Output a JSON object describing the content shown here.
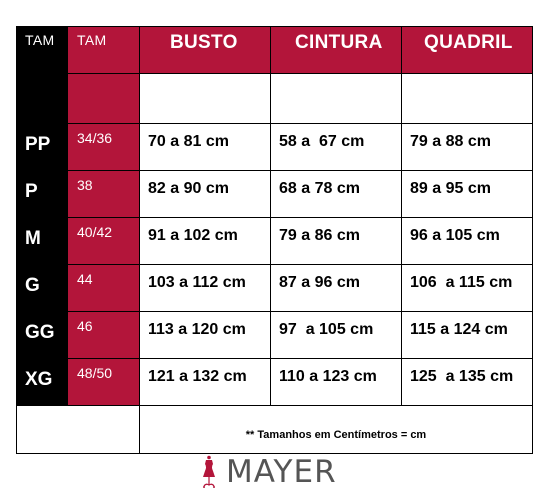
{
  "table": {
    "headers": {
      "tam": "TAM",
      "tam_num": "TAM",
      "busto": "BUSTO",
      "cintura": "CINTURA",
      "quadril": "QUADRIL"
    },
    "rows": [
      {
        "size": "PP",
        "num": "34/36",
        "busto": "70 a 81 cm",
        "cintura": "58 a  67 cm",
        "quadril": "79 a 88 cm"
      },
      {
        "size": "P",
        "num": "38",
        "busto": "82 a 90 cm",
        "cintura": "68 a 78 cm",
        "quadril": "89 a 95 cm"
      },
      {
        "size": "M",
        "num": "40/42",
        "busto": "91 a 102 cm",
        "cintura": "79 a 86 cm",
        "quadril": "96 a 105 cm"
      },
      {
        "size": "G",
        "num": "44",
        "busto": "103 a 112 cm",
        "cintura": "87 a 96 cm",
        "quadril": "106  a 115 cm"
      },
      {
        "size": "GG",
        "num": "46",
        "busto": "113 a 120 cm",
        "cintura": "97  a 105 cm",
        "quadril": "115 a 124 cm"
      },
      {
        "size": "XG",
        "num": "48/50",
        "busto": "121 a 132 cm",
        "cintura": "110 a 123 cm",
        "quadril": "125  a 135 cm"
      }
    ],
    "footnote": "** Tamanhos em Centímetros = cm"
  },
  "logo": {
    "text": "MAYER",
    "icon": "dress-form-icon",
    "color": "#b3153a"
  },
  "colors": {
    "header_red": "#b3153a",
    "size_black": "#000000"
  }
}
